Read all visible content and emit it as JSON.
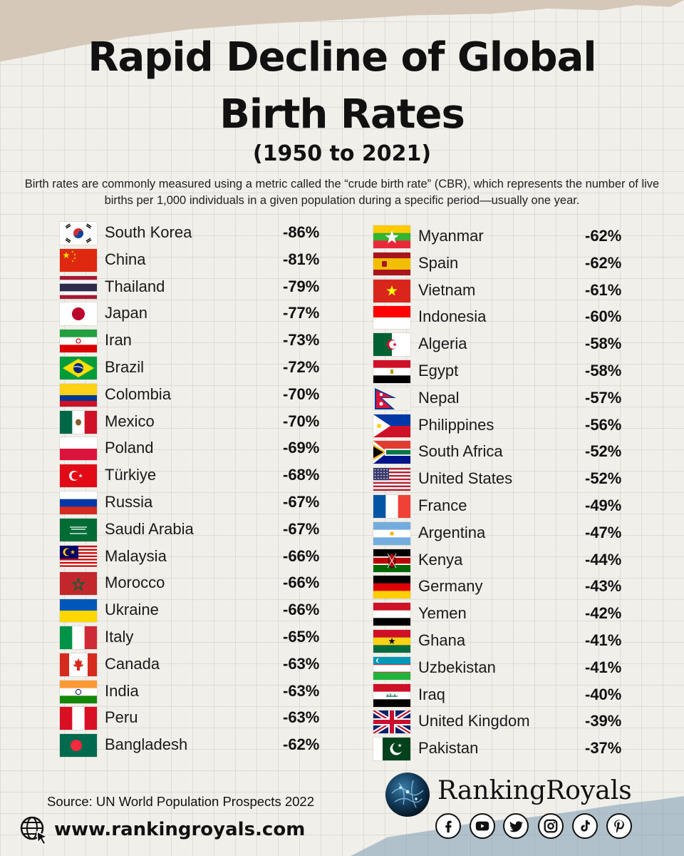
{
  "title": {
    "line1": "Rapid Decline of Global",
    "line2": "Birth Rates",
    "subtitle": "(1950 to 2021)"
  },
  "description": "Birth rates are commonly measured using a metric called the “crude birth rate” (CBR), which represents the number of live births per 1,000 individuals in a given population during a specific period—usually one year.",
  "left_column": [
    {
      "country": "South Korea",
      "change": "-86%",
      "flag": "south-korea"
    },
    {
      "country": "China",
      "change": "-81%",
      "flag": "china"
    },
    {
      "country": "Thailand",
      "change": "-79%",
      "flag": "thailand"
    },
    {
      "country": "Japan",
      "change": "-77%",
      "flag": "japan"
    },
    {
      "country": "Iran",
      "change": "-73%",
      "flag": "iran"
    },
    {
      "country": "Brazil",
      "change": "-72%",
      "flag": "brazil"
    },
    {
      "country": "Colombia",
      "change": "-70%",
      "flag": "colombia"
    },
    {
      "country": "Mexico",
      "change": "-70%",
      "flag": "mexico"
    },
    {
      "country": "Poland",
      "change": "-69%",
      "flag": "poland"
    },
    {
      "country": "Türkiye",
      "change": "-68%",
      "flag": "turkiye"
    },
    {
      "country": "Russia",
      "change": "-67%",
      "flag": "russia"
    },
    {
      "country": "Saudi Arabia",
      "change": "-67%",
      "flag": "saudi-arabia"
    },
    {
      "country": "Malaysia",
      "change": "-66%",
      "flag": "malaysia"
    },
    {
      "country": "Morocco",
      "change": "-66%",
      "flag": "morocco"
    },
    {
      "country": "Ukraine",
      "change": "-66%",
      "flag": "ukraine"
    },
    {
      "country": "Italy",
      "change": "-65%",
      "flag": "italy"
    },
    {
      "country": "Canada",
      "change": "-63%",
      "flag": "canada"
    },
    {
      "country": "India",
      "change": "-63%",
      "flag": "india"
    },
    {
      "country": "Peru",
      "change": "-63%",
      "flag": "peru"
    },
    {
      "country": "Bangladesh",
      "change": "-62%",
      "flag": "bangladesh"
    }
  ],
  "right_column": [
    {
      "country": "Myanmar",
      "change": "-62%",
      "flag": "myanmar"
    },
    {
      "country": "Spain",
      "change": "-62%",
      "flag": "spain"
    },
    {
      "country": "Vietnam",
      "change": "-61%",
      "flag": "vietnam"
    },
    {
      "country": "Indonesia",
      "change": "-60%",
      "flag": "indonesia"
    },
    {
      "country": "Algeria",
      "change": "-58%",
      "flag": "algeria"
    },
    {
      "country": "Egypt",
      "change": "-58%",
      "flag": "egypt"
    },
    {
      "country": "Nepal",
      "change": "-57%",
      "flag": "nepal"
    },
    {
      "country": "Philippines",
      "change": "-56%",
      "flag": "philippines"
    },
    {
      "country": "South Africa",
      "change": "-52%",
      "flag": "south-africa"
    },
    {
      "country": "United States",
      "change": "-52%",
      "flag": "united-states"
    },
    {
      "country": "France",
      "change": "-49%",
      "flag": "france"
    },
    {
      "country": "Argentina",
      "change": "-47%",
      "flag": "argentina"
    },
    {
      "country": "Kenya",
      "change": "-44%",
      "flag": "kenya"
    },
    {
      "country": "Germany",
      "change": "-43%",
      "flag": "germany"
    },
    {
      "country": "Yemen",
      "change": "-42%",
      "flag": "yemen"
    },
    {
      "country": "Ghana",
      "change": "-41%",
      "flag": "ghana"
    },
    {
      "country": "Uzbekistan",
      "change": "-41%",
      "flag": "uzbekistan"
    },
    {
      "country": "Iraq",
      "change": "-40%",
      "flag": "iraq"
    },
    {
      "country": "United Kingdom",
      "change": "-39%",
      "flag": "united-kingdom"
    },
    {
      "country": "Pakistan",
      "change": "-37%",
      "flag": "pakistan"
    }
  ],
  "footer": {
    "source": "Source: UN World Population Prospects 2022",
    "website": "www.rankingroyals.com",
    "brand": "RankingRoyals",
    "social_icons": [
      "facebook-icon",
      "youtube-icon",
      "twitter-icon",
      "instagram-icon",
      "tiktok-icon",
      "pinterest-icon"
    ]
  }
}
